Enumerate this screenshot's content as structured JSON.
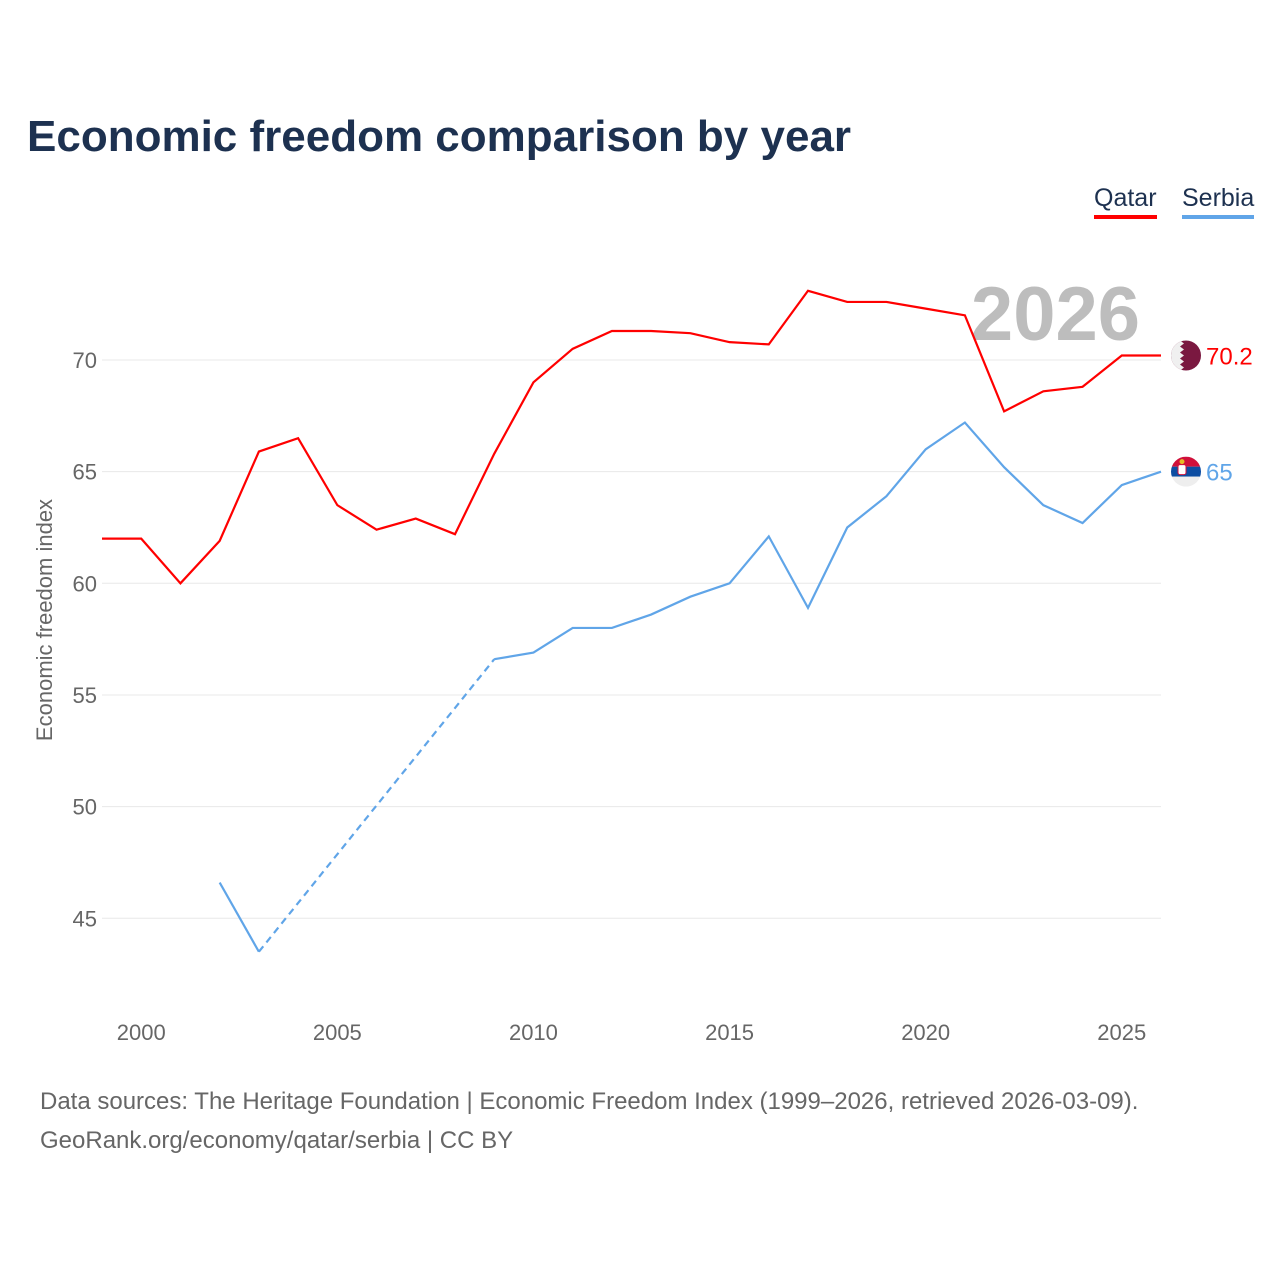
{
  "title": "Economic freedom comparison by year",
  "footer": {
    "line1": "Data sources: The Heritage Foundation | Economic Freedom Index (1999–2026, retrieved 2026-03-09).",
    "line2": "GeoRank.org/economy/qatar/serbia | CC BY"
  },
  "chart_data": {
    "type": "line",
    "title": "Economic freedom comparison by year",
    "ylabel": "Economic freedom index",
    "xlabel": "",
    "xlim": [
      1999,
      2026
    ],
    "ylim": [
      41,
      75
    ],
    "yticks": [
      45,
      50,
      55,
      60,
      65,
      70
    ],
    "xticks": [
      2000,
      2005,
      2010,
      2015,
      2020,
      2025
    ],
    "grid": true,
    "legend": "top-right",
    "year_label": "2026",
    "x": [
      1999,
      2000,
      2001,
      2002,
      2003,
      2004,
      2005,
      2006,
      2007,
      2008,
      2009,
      2010,
      2011,
      2012,
      2013,
      2014,
      2015,
      2016,
      2017,
      2018,
      2019,
      2020,
      2021,
      2022,
      2023,
      2024,
      2025,
      2026
    ],
    "series": [
      {
        "name": "Qatar",
        "color": "#ff0000",
        "end_label": "70.2",
        "flag": "qatar-flag",
        "values": [
          62.0,
          62.0,
          60.0,
          61.9,
          65.9,
          66.5,
          63.5,
          62.4,
          62.9,
          62.2,
          65.8,
          69.0,
          70.5,
          71.3,
          71.3,
          71.2,
          70.8,
          70.7,
          73.1,
          72.6,
          72.6,
          72.3,
          72.0,
          67.7,
          68.6,
          68.8,
          70.2,
          70.2
        ]
      },
      {
        "name": "Serbia",
        "color": "#60a5e8",
        "end_label": "65",
        "flag": "serbia-flag",
        "values": [
          null,
          null,
          null,
          46.6,
          43.5,
          null,
          null,
          null,
          null,
          null,
          56.6,
          56.9,
          58.0,
          58.0,
          58.6,
          59.4,
          60.0,
          62.1,
          58.9,
          62.5,
          63.9,
          66.0,
          67.2,
          65.2,
          63.5,
          62.7,
          64.4,
          65.0
        ]
      }
    ]
  }
}
